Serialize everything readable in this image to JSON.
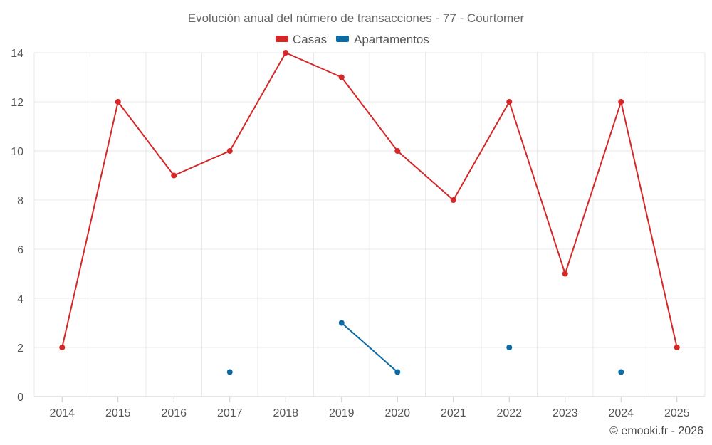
{
  "chart_data": {
    "type": "line",
    "title": "Evolución anual del número de transacciones - 77 - Courtomer",
    "categories": [
      "2014",
      "2015",
      "2016",
      "2017",
      "2018",
      "2019",
      "2020",
      "2021",
      "2022",
      "2023",
      "2024",
      "2025"
    ],
    "ylim": [
      0,
      14
    ],
    "yticks": [
      0,
      2,
      4,
      6,
      8,
      10,
      12,
      14
    ],
    "grid": true,
    "legend_position": "top-center",
    "series": [
      {
        "name": "Casas",
        "color": "#d62728",
        "values": [
          2,
          12,
          9,
          10,
          14,
          13,
          10,
          8,
          12,
          5,
          12,
          2
        ]
      },
      {
        "name": "Apartamentos",
        "color": "#0b6aa2",
        "values": [
          null,
          null,
          null,
          1,
          null,
          3,
          1,
          null,
          2,
          null,
          1,
          null
        ]
      }
    ],
    "credit": "© emooki.fr - 2026"
  }
}
